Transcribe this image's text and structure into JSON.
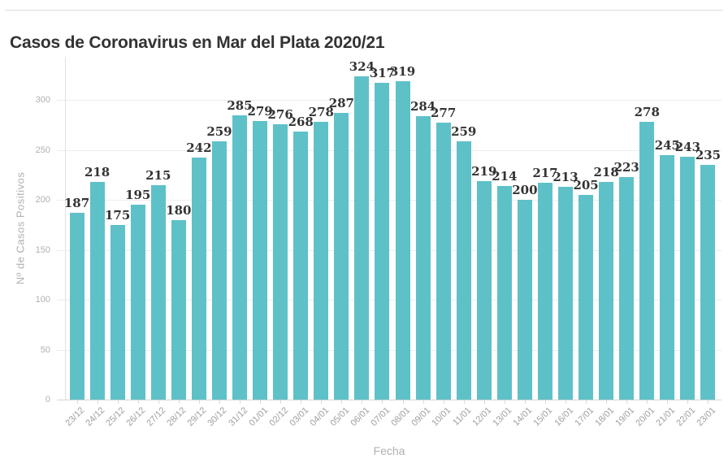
{
  "page": {
    "title": "Casos de Coronavirus en Mar del Plata 2020/21"
  },
  "chart_data": {
    "type": "bar",
    "title": "Casos de Coronavirus en Mar del Plata 2020/21",
    "xlabel": "Fecha",
    "ylabel": "Nº de Casos Positivos",
    "categories": [
      "23/12",
      "24/12",
      "25/12",
      "26/12",
      "27/12",
      "28/12",
      "29/12",
      "30/12",
      "31/12",
      "01/01",
      "02/12",
      "03/01",
      "04/01",
      "05/01",
      "06/01",
      "07/01",
      "08/01",
      "09/01",
      "10/01",
      "11/01",
      "12/01",
      "13/01",
      "14/01",
      "15/01",
      "16/01",
      "17/01",
      "18/01",
      "19/01",
      "20/01",
      "21/01",
      "22/01",
      "23/01"
    ],
    "values": [
      187,
      218,
      175,
      195,
      215,
      180,
      242,
      259,
      285,
      279,
      276,
      268,
      278,
      287,
      324,
      317,
      319,
      284,
      277,
      259,
      219,
      214,
      200,
      217,
      213,
      205,
      218,
      223,
      278,
      245,
      243,
      235
    ],
    "ylim": [
      0,
      330
    ],
    "yticks": [
      0,
      50,
      100,
      150,
      200,
      250,
      300
    ],
    "grid": true,
    "legend": "none",
    "bar_color": "#5EC1C8",
    "value_label_color": "#333333",
    "axis_label_color": "#b0b0b0"
  }
}
